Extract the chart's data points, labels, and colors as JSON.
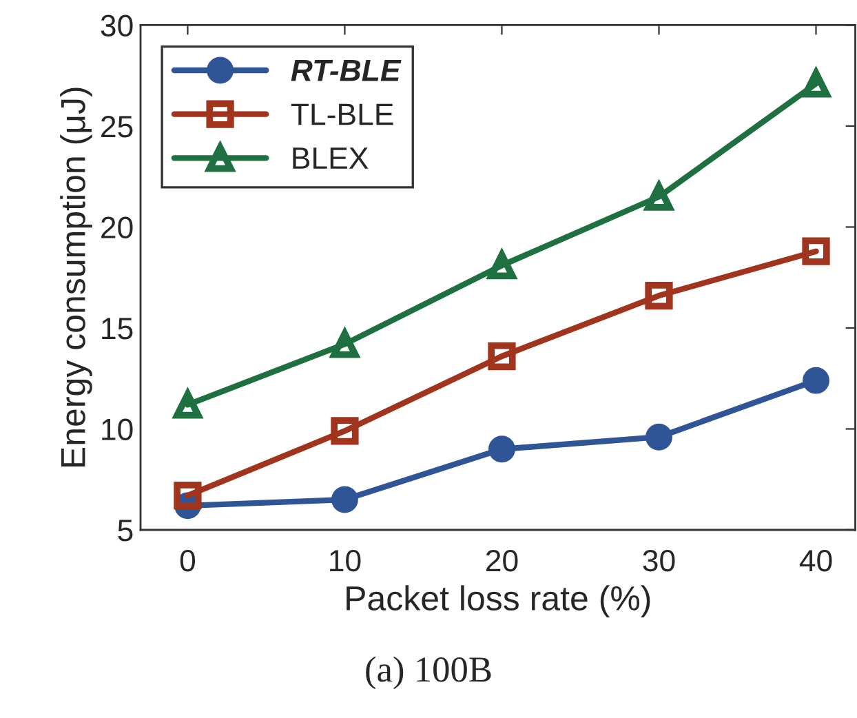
{
  "chart_data": {
    "type": "line",
    "xlabel": "Packet loss rate (%)",
    "ylabel": "Energy consumption (μJ)",
    "x": [
      0,
      10,
      20,
      30,
      40
    ],
    "series": [
      {
        "name": "RT-BLE",
        "color": "#2f5597",
        "marker": "circle",
        "values": [
          6.2,
          6.5,
          9.0,
          9.6,
          12.4
        ]
      },
      {
        "name": "TL-BLE",
        "color": "#a0341c",
        "marker": "square",
        "values": [
          6.7,
          9.9,
          13.6,
          16.6,
          18.8
        ]
      },
      {
        "name": "BLEX",
        "color": "#1e7040",
        "marker": "triangle",
        "values": [
          11.2,
          14.2,
          18.1,
          21.5,
          27.1
        ]
      }
    ],
    "xlim": [
      -3,
      42.5
    ],
    "ylim": [
      5,
      30
    ],
    "xticks": [
      0,
      10,
      20,
      30,
      40
    ],
    "yticks": [
      5,
      10,
      15,
      20,
      25,
      30
    ],
    "grid": false,
    "legend": "top left",
    "line_style": "solid",
    "annotations": [
      "(a) 100B"
    ]
  }
}
